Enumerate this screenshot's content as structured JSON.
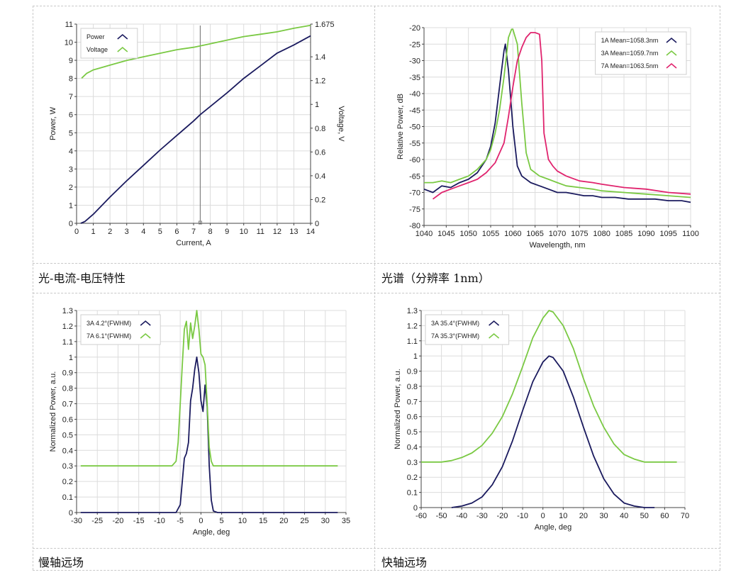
{
  "captions": {
    "liv": "光-电流-电压特性",
    "spectrum": "光谱（分辨率 1nm）",
    "slow_axis": "慢轴远场",
    "fast_axis": "快轴远场"
  },
  "colors": {
    "navy": "#1a1a5e",
    "green": "#7ac943",
    "magenta": "#e0246e",
    "grid": "#dcdcdc",
    "cursor": "#808080"
  },
  "chart_data": [
    {
      "id": "liv",
      "type": "line",
      "xlabel": "Current, A",
      "ylabel": "Power, W",
      "y2label": "Voltage, V",
      "xlim": [
        0,
        14
      ],
      "ylim": [
        0,
        11
      ],
      "y2lim": [
        0,
        1.675
      ],
      "x_ticks": [
        "0",
        "1",
        "2",
        "3",
        "4",
        "5",
        "6",
        "7",
        "8",
        "9",
        "10",
        "11",
        "12",
        "13",
        "14"
      ],
      "y_ticks": [
        "0",
        "1",
        "2",
        "3",
        "4",
        "5",
        "6",
        "7",
        "8",
        "9",
        "10",
        "11"
      ],
      "y2_ticks": [
        "0",
        "0.2",
        "0.4",
        "0.6",
        "0.8",
        "1",
        "1.2",
        "1.4",
        "1.675"
      ],
      "cursor_x": 7.4,
      "grid": true,
      "legend_position": "top-left",
      "series": [
        {
          "name": "Power",
          "axis": "left",
          "color": "#1a1a5e",
          "x": [
            0.25,
            0.5,
            1,
            2,
            3,
            4,
            5,
            6,
            7,
            7.4,
            8,
            9,
            10,
            11,
            12,
            13,
            14
          ],
          "y": [
            0,
            0.1,
            0.5,
            1.45,
            2.35,
            3.2,
            4.05,
            4.85,
            5.65,
            6.0,
            6.45,
            7.2,
            8.0,
            8.7,
            9.4,
            9.85,
            10.35
          ]
        },
        {
          "name": "Voltage",
          "axis": "right",
          "color": "#7ac943",
          "x": [
            0.3,
            0.6,
            1,
            1.5,
            2,
            3,
            4,
            5,
            6,
            7,
            8,
            9,
            10,
            11,
            12,
            13,
            14
          ],
          "y": [
            1.22,
            1.26,
            1.29,
            1.31,
            1.33,
            1.37,
            1.4,
            1.43,
            1.46,
            1.48,
            1.51,
            1.54,
            1.57,
            1.59,
            1.61,
            1.64,
            1.665
          ]
        }
      ]
    },
    {
      "id": "spectrum",
      "type": "line",
      "xlabel": "Wavelength, nm",
      "ylabel": "Relative Power, dB",
      "xlim": [
        1040,
        1100
      ],
      "ylim": [
        -80,
        -20
      ],
      "x_ticks": [
        "1040",
        "1045",
        "1050",
        "1055",
        "1060",
        "1065",
        "1070",
        "1075",
        "1080",
        "1085",
        "1090",
        "1095",
        "1100"
      ],
      "y_ticks": [
        "-80",
        "-75",
        "-70",
        "-65",
        "-60",
        "-55",
        "-50",
        "-45",
        "-40",
        "-35",
        "-30",
        "-25",
        "-20"
      ],
      "grid": true,
      "legend_position": "top-right",
      "series": [
        {
          "name": "1A Mean=1058.3nm",
          "color": "#1a1a5e",
          "x": [
            1040,
            1042,
            1044,
            1046,
            1048,
            1050,
            1052,
            1054,
            1055,
            1056,
            1057,
            1058,
            1058.3,
            1059,
            1060,
            1061,
            1062,
            1064,
            1066,
            1068,
            1070,
            1072,
            1074,
            1076,
            1078,
            1080,
            1083,
            1086,
            1089,
            1092,
            1095,
            1098,
            1100
          ],
          "y": [
            -69,
            -70,
            -68,
            -68.5,
            -67,
            -66,
            -64,
            -60,
            -56,
            -49,
            -38,
            -27,
            -25,
            -33,
            -50,
            -62,
            -65,
            -67,
            -68,
            -69,
            -70,
            -70,
            -70.5,
            -71,
            -71,
            -71.5,
            -71.5,
            -72,
            -72,
            -72,
            -72.5,
            -72.5,
            -73
          ]
        },
        {
          "name": "3A Mean=1059.7nm",
          "color": "#7ac943",
          "x": [
            1040,
            1042,
            1044,
            1046,
            1048,
            1050,
            1052,
            1054,
            1055,
            1056,
            1057,
            1058,
            1059,
            1059.7,
            1060,
            1061,
            1062,
            1063,
            1064,
            1066,
            1068,
            1070,
            1072,
            1075,
            1078,
            1080,
            1085,
            1090,
            1095,
            1100
          ],
          "y": [
            -67,
            -67,
            -66.5,
            -67,
            -66,
            -65,
            -63,
            -60,
            -57,
            -52,
            -45,
            -35,
            -23,
            -20.5,
            -20.5,
            -25,
            -43,
            -58,
            -63,
            -65,
            -66,
            -67,
            -68,
            -68.5,
            -69,
            -69.5,
            -70,
            -70.5,
            -71,
            -71.5
          ]
        },
        {
          "name": "7A Mean=1063.5nm",
          "color": "#e0246e",
          "x": [
            1042,
            1044,
            1046,
            1048,
            1050,
            1052,
            1054,
            1056,
            1058,
            1059,
            1060,
            1061,
            1062,
            1063,
            1064,
            1065,
            1066,
            1066.5,
            1067,
            1068,
            1069,
            1070,
            1072,
            1075,
            1078,
            1080,
            1085,
            1090,
            1095,
            1100
          ],
          "y": [
            -72,
            -70,
            -69,
            -68,
            -67,
            -66,
            -64,
            -61,
            -55,
            -47,
            -38,
            -30,
            -26,
            -23,
            -21.5,
            -21.5,
            -22,
            -30,
            -52,
            -60,
            -62,
            -63.5,
            -65,
            -66.5,
            -67,
            -67.5,
            -68.5,
            -69,
            -70,
            -70.5
          ]
        }
      ]
    },
    {
      "id": "slow_axis",
      "type": "line",
      "xlabel": "Angle, deg",
      "ylabel": "Normalized Power, a.u.",
      "xlim": [
        -30,
        35
      ],
      "ylim": [
        0,
        1.3
      ],
      "x_ticks": [
        "-30",
        "-25",
        "-20",
        "-15",
        "-10",
        "-5",
        "0",
        "5",
        "10",
        "15",
        "20",
        "25",
        "30",
        "35"
      ],
      "y_ticks": [
        "0",
        "0.1",
        "0.2",
        "0.3",
        "0.4",
        "0.5",
        "0.6",
        "0.7",
        "0.8",
        "0.9",
        "1",
        "1.1",
        "1.2",
        "1.3"
      ],
      "grid": true,
      "legend_position": "top-left",
      "series": [
        {
          "name": "3A 4.2°(FWHM)",
          "color": "#1a1a5e",
          "x": [
            -29,
            -10,
            -6,
            -5,
            -4.5,
            -4,
            -3.5,
            -3,
            -2.5,
            -2,
            -1.5,
            -1,
            -0.5,
            0,
            0.5,
            1,
            1.5,
            2,
            2.5,
            3,
            4,
            33
          ],
          "y": [
            0,
            0,
            0,
            0.05,
            0.2,
            0.35,
            0.38,
            0.45,
            0.72,
            0.8,
            0.92,
            1.0,
            0.9,
            0.72,
            0.65,
            0.82,
            0.68,
            0.3,
            0.08,
            0.01,
            0,
            0
          ]
        },
        {
          "name": "7A 6.1°(FWHM)",
          "color": "#7ac943",
          "x": [
            -29,
            -8,
            -7,
            -6,
            -5.5,
            -5,
            -4.5,
            -4,
            -3.5,
            -3,
            -2.5,
            -2,
            -1.5,
            -1,
            -0.5,
            0,
            0.5,
            1,
            1.5,
            2,
            2.5,
            3,
            4,
            33
          ],
          "y": [
            0.3,
            0.3,
            0.3,
            0.33,
            0.45,
            0.7,
            0.95,
            1.18,
            1.23,
            1.05,
            1.22,
            1.12,
            1.2,
            1.3,
            1.18,
            1.02,
            1.0,
            0.95,
            0.7,
            0.42,
            0.33,
            0.3,
            0.3,
            0.3
          ]
        }
      ]
    },
    {
      "id": "fast_axis",
      "type": "line",
      "xlabel": "Angle, deg",
      "ylabel": "Normalized Power, a.u.",
      "xlim": [
        -60,
        70
      ],
      "ylim": [
        0,
        1.3
      ],
      "x_ticks": [
        "-60",
        "-50",
        "-40",
        "-30",
        "-20",
        "-10",
        "0",
        "10",
        "20",
        "30",
        "40",
        "50",
        "60",
        "70"
      ],
      "y_ticks": [
        "0",
        "0.1",
        "0.2",
        "0.3",
        "0.4",
        "0.5",
        "0.6",
        "0.7",
        "0.8",
        "0.9",
        "1",
        "1.1",
        "1.2",
        "1.3"
      ],
      "grid": true,
      "legend_position": "top-left",
      "series": [
        {
          "name": "3A 35.4°(FWHM)",
          "color": "#1a1a5e",
          "x": [
            -45,
            -40,
            -35,
            -30,
            -25,
            -20,
            -15,
            -10,
            -5,
            0,
            3,
            5,
            10,
            15,
            20,
            25,
            30,
            35,
            40,
            45,
            50,
            55
          ],
          "y": [
            0,
            0.01,
            0.03,
            0.07,
            0.15,
            0.27,
            0.44,
            0.64,
            0.83,
            0.96,
            1.0,
            0.99,
            0.9,
            0.73,
            0.53,
            0.34,
            0.19,
            0.09,
            0.03,
            0.01,
            0,
            0
          ]
        },
        {
          "name": "7A 35.3°(FWHM)",
          "color": "#7ac943",
          "x": [
            -60,
            -50,
            -45,
            -40,
            -35,
            -30,
            -25,
            -20,
            -15,
            -10,
            -5,
            0,
            3,
            5,
            10,
            15,
            20,
            25,
            30,
            35,
            40,
            45,
            50,
            55,
            60,
            66
          ],
          "y": [
            0.3,
            0.3,
            0.31,
            0.33,
            0.36,
            0.41,
            0.49,
            0.6,
            0.75,
            0.93,
            1.12,
            1.25,
            1.3,
            1.29,
            1.2,
            1.05,
            0.85,
            0.67,
            0.53,
            0.42,
            0.35,
            0.32,
            0.3,
            0.3,
            0.3,
            0.3
          ]
        }
      ]
    }
  ]
}
